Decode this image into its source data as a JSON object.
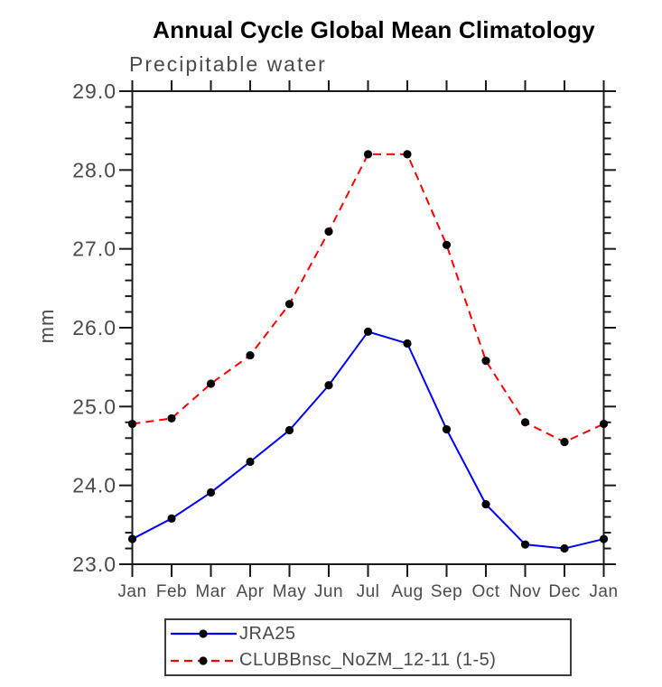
{
  "title": "Annual Cycle Global Mean Climatology",
  "subtitle": "Precipitable water",
  "ylabel": "mm",
  "colors": {
    "axis": "#1a1a1a",
    "tick_label": "#4a4a4a",
    "series1": "#0000ff",
    "series2": "#ff0000",
    "marker": "#000000",
    "legend_border": "#3c3c3c"
  },
  "chart_data": {
    "type": "line",
    "title": "Annual Cycle Global Mean Climatology",
    "subtitle": "Precipitable water",
    "xlabel": "",
    "ylabel": "mm",
    "x": [
      "Jan",
      "Feb",
      "Mar",
      "Apr",
      "May",
      "Jun",
      "Jul",
      "Aug",
      "Sep",
      "Oct",
      "Nov",
      "Dec",
      "Jan"
    ],
    "ylim": [
      23.0,
      29.0
    ],
    "ytick_step": 1.0,
    "yminor_step": 0.2,
    "grid": false,
    "legend_position": "bottom",
    "series": [
      {
        "name": "JRA25",
        "color": "#0000ff",
        "style": "solid",
        "marker": "circle",
        "marker_color": "#000000",
        "values": [
          23.32,
          23.58,
          23.91,
          24.3,
          24.7,
          25.27,
          25.95,
          25.8,
          24.71,
          23.76,
          23.25,
          23.2,
          23.32
        ]
      },
      {
        "name": "CLUBBnsc_NoZM_12-11 (1-5)",
        "color": "#ff0000",
        "style": "dashed",
        "marker": "circle",
        "marker_color": "#000000",
        "values": [
          24.78,
          24.85,
          25.29,
          25.65,
          26.3,
          27.22,
          28.2,
          28.2,
          27.05,
          25.58,
          24.8,
          24.55,
          24.78
        ]
      }
    ]
  }
}
